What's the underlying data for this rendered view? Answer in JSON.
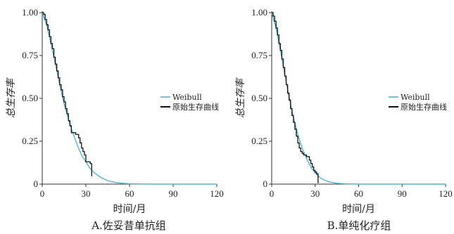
{
  "chart_data": [
    {
      "type": "line",
      "panel": "A",
      "caption": "A.佐妥昔单抗组",
      "xlabel": "时间/月",
      "ylabel": "总生存率",
      "xlim": [
        0,
        120
      ],
      "ylim": [
        0,
        1
      ],
      "xticks": [
        "0",
        "30",
        "60",
        "90",
        "120"
      ],
      "yticks": [
        "0",
        "0.25",
        "0.50",
        "0.75",
        "1.00"
      ],
      "legend_position": "right",
      "series": [
        {
          "name": "Weibull",
          "color": "#4fb7d2",
          "x": [
            0,
            3,
            6,
            9,
            12,
            15,
            18,
            21,
            24,
            27,
            30,
            33,
            36,
            40,
            45,
            50,
            55,
            60,
            70,
            80,
            90,
            100,
            110,
            120
          ],
          "y": [
            1.0,
            0.93,
            0.82,
            0.7,
            0.58,
            0.47,
            0.38,
            0.3,
            0.23,
            0.17,
            0.13,
            0.09,
            0.065,
            0.04,
            0.02,
            0.01,
            0.005,
            0.002,
            0.0005,
            0.0,
            0.0,
            0.0,
            0.0,
            0.0
          ]
        },
        {
          "name": "原始生存曲线",
          "color": "#111111",
          "x": [
            0,
            1,
            2,
            3,
            4,
            5,
            6,
            7,
            8,
            9,
            10,
            11,
            12,
            13,
            14,
            15,
            16,
            17,
            18,
            19,
            20,
            21,
            22,
            23,
            24,
            25,
            26,
            27,
            28,
            29,
            30,
            31,
            32,
            33,
            34
          ],
          "y": [
            1.0,
            0.99,
            0.96,
            0.93,
            0.9,
            0.86,
            0.82,
            0.79,
            0.74,
            0.7,
            0.66,
            0.62,
            0.58,
            0.55,
            0.51,
            0.48,
            0.44,
            0.41,
            0.37,
            0.34,
            0.3,
            0.3,
            0.3,
            0.29,
            0.29,
            0.27,
            0.24,
            0.21,
            0.19,
            0.17,
            0.13,
            0.13,
            0.13,
            0.12,
            0.07
          ]
        }
      ]
    },
    {
      "type": "line",
      "panel": "B",
      "caption": "B.单纯化疗组",
      "xlabel": "时间/月",
      "ylabel": "总生存率",
      "xlim": [
        0,
        120
      ],
      "ylim": [
        0,
        1
      ],
      "xticks": [
        "0",
        "30",
        "60",
        "90",
        "120"
      ],
      "yticks": [
        "0",
        "0.25",
        "0.50",
        "0.75",
        "1.00"
      ],
      "legend_position": "right",
      "series": [
        {
          "name": "Weibull",
          "color": "#4fb7d2",
          "x": [
            0,
            3,
            6,
            9,
            12,
            15,
            18,
            21,
            24,
            27,
            30,
            33,
            36,
            40,
            45,
            50,
            55,
            60,
            70,
            80,
            90,
            100,
            110,
            120
          ],
          "y": [
            1.0,
            0.91,
            0.78,
            0.64,
            0.51,
            0.39,
            0.29,
            0.21,
            0.15,
            0.1,
            0.065,
            0.04,
            0.025,
            0.012,
            0.005,
            0.002,
            0.001,
            0.0,
            0.0,
            0.0,
            0.0,
            0.0,
            0.0,
            0.0
          ]
        },
        {
          "name": "原始生存曲线",
          "color": "#111111",
          "x": [
            0,
            1,
            2,
            3,
            4,
            5,
            6,
            7,
            8,
            9,
            10,
            11,
            12,
            13,
            14,
            15,
            16,
            17,
            18,
            19,
            20,
            21,
            22,
            23,
            24,
            25,
            26,
            27,
            28,
            29,
            30,
            31,
            32
          ],
          "y": [
            1.0,
            0.98,
            0.95,
            0.91,
            0.87,
            0.82,
            0.78,
            0.73,
            0.68,
            0.63,
            0.58,
            0.53,
            0.49,
            0.44,
            0.4,
            0.36,
            0.32,
            0.28,
            0.24,
            0.21,
            0.19,
            0.18,
            0.17,
            0.17,
            0.16,
            0.16,
            0.14,
            0.12,
            0.1,
            0.08,
            0.07,
            0.06,
            0.03
          ]
        }
      ]
    }
  ]
}
